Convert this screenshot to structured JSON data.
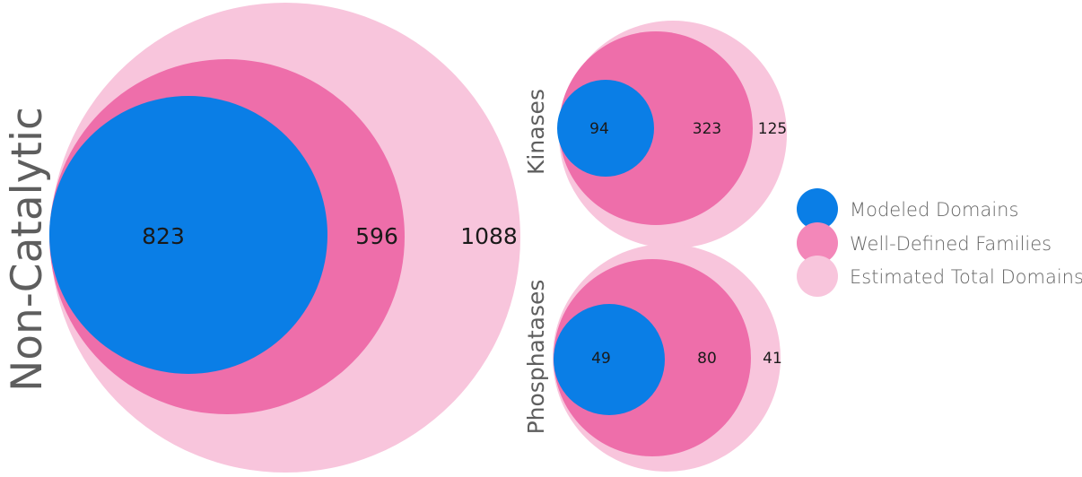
{
  "colors": {
    "modeled": "#0a7ee6",
    "well_defined": "#ee6eaa",
    "estimated_total": "#f8c5dc",
    "legend_well_defined": "#f387b9",
    "text": "#1a1a1a",
    "group_label": "#5e5e5e",
    "legend_text": "#666666"
  },
  "groups": [
    {
      "name": "Non-Catalytic",
      "modeled": "823",
      "well_defined": "596",
      "estimated_total": "1088"
    },
    {
      "name": "Kinases",
      "modeled": "94",
      "well_defined": "323",
      "estimated_total": "125"
    },
    {
      "name": "Phosphatases",
      "modeled": "49",
      "well_defined": "80",
      "estimated_total": "41"
    }
  ],
  "legend": [
    {
      "label": "Modeled Domains",
      "color": "#0a7ee6"
    },
    {
      "label": "Well-Defined Families",
      "color": "#f387b9"
    },
    {
      "label": "Estimated Total Domains",
      "color": "#f8c5dc"
    }
  ]
}
